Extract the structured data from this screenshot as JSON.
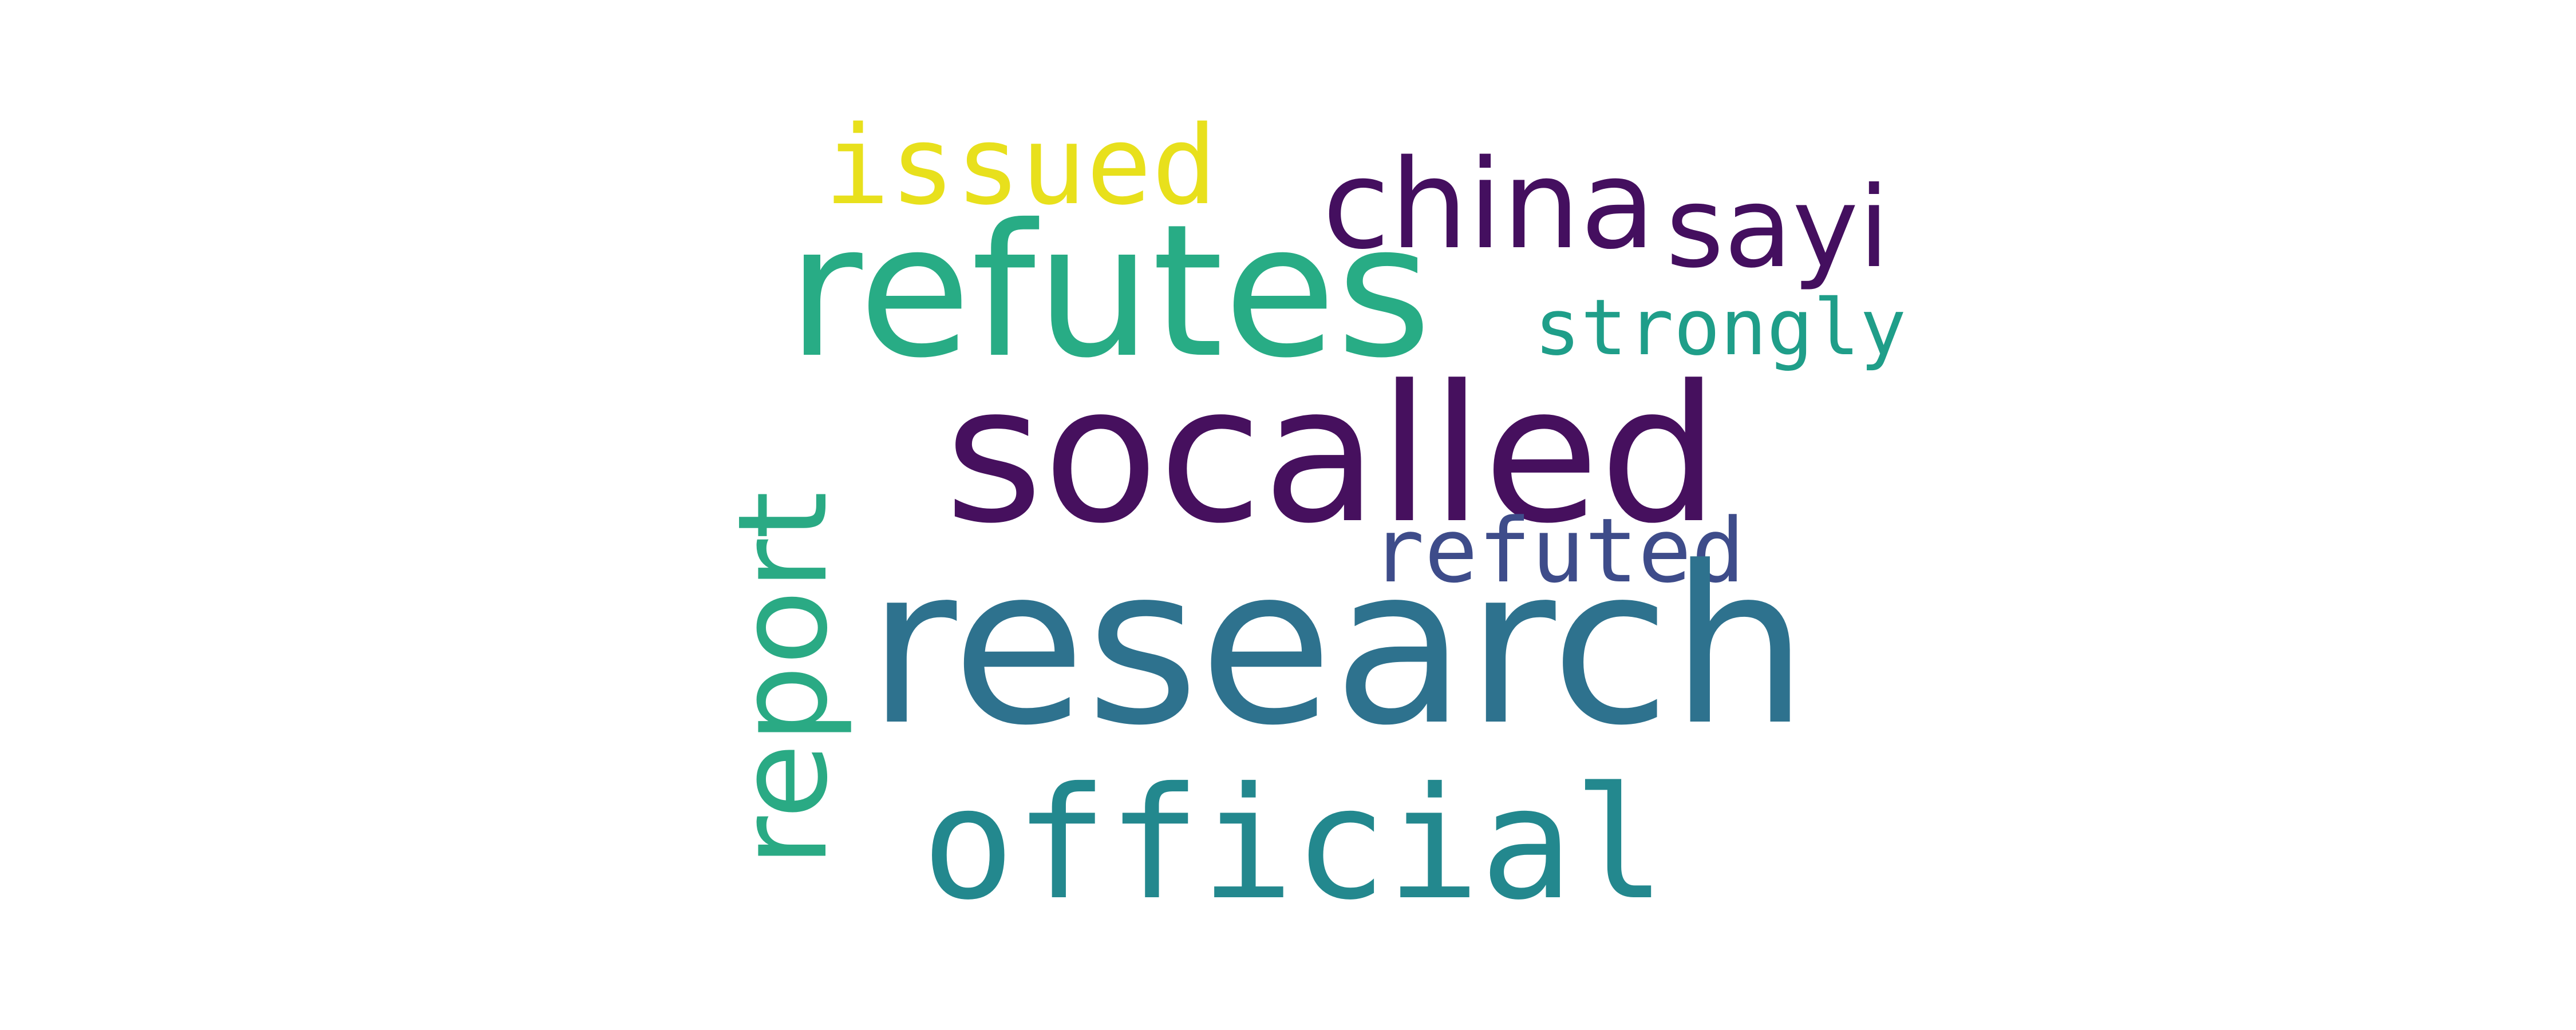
{
  "words": [
    {
      "text": "issued",
      "color": "#e8e01c"
    },
    {
      "text": "china",
      "color": "#440f5f"
    },
    {
      "text": "sayi",
      "color": "#440f5f"
    },
    {
      "text": "refutes",
      "color": "#28ac85"
    },
    {
      "text": "strongly",
      "color": "#1f9e89"
    },
    {
      "text": "socalled",
      "color": "#46105e"
    },
    {
      "text": "report",
      "color": "#2aaa84"
    },
    {
      "text": "refuted",
      "color": "#3e4c8a"
    },
    {
      "text": "research",
      "color": "#2e728e"
    },
    {
      "text": "official",
      "color": "#23888e"
    }
  ]
}
